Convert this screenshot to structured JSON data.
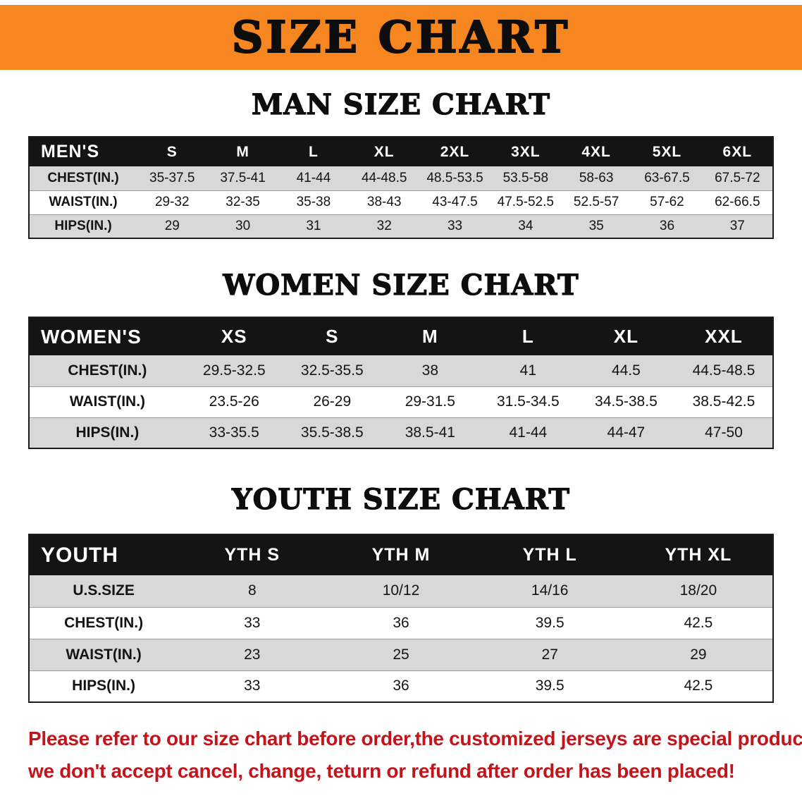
{
  "banner": {
    "title": "SIZE CHART",
    "bg_color": "#f6861f"
  },
  "colors": {
    "header_bg": "#141414",
    "shaded_row": "#d8d8d8",
    "disclaimer_text": "#c2151b"
  },
  "sections": [
    {
      "id": "men",
      "heading": "MAN SIZE CHART",
      "table": {
        "label": "MEN'S",
        "columns": [
          "S",
          "M",
          "L",
          "XL",
          "2XL",
          "3XL",
          "4XL",
          "5XL",
          "6XL"
        ],
        "rows": [
          {
            "label": "CHEST(IN.)",
            "values": [
              "35-37.5",
              "37.5-41",
              "41-44",
              "44-48.5",
              "48.5-53.5",
              "53.5-58",
              "58-63",
              "63-67.5",
              "67.5-72"
            ]
          },
          {
            "label": "WAIST(IN.)",
            "values": [
              "29-32",
              "32-35",
              "35-38",
              "38-43",
              "43-47.5",
              "47.5-52.5",
              "52.5-57",
              "57-62",
              "62-66.5"
            ]
          },
          {
            "label": "HIPS(IN.)",
            "values": [
              "29",
              "30",
              "31",
              "32",
              "33",
              "34",
              "35",
              "36",
              "37"
            ]
          }
        ]
      }
    },
    {
      "id": "women",
      "heading": "WOMEN SIZE CHART",
      "table": {
        "label": "WOMEN'S",
        "columns": [
          "XS",
          "S",
          "M",
          "L",
          "XL",
          "XXL"
        ],
        "rows": [
          {
            "label": "CHEST(IN.)",
            "values": [
              "29.5-32.5",
              "32.5-35.5",
              "38",
              "41",
              "44.5",
              "44.5-48.5"
            ]
          },
          {
            "label": "WAIST(IN.)",
            "values": [
              "23.5-26",
              "26-29",
              "29-31.5",
              "31.5-34.5",
              "34.5-38.5",
              "38.5-42.5"
            ]
          },
          {
            "label": "HIPS(IN.)",
            "values": [
              "33-35.5",
              "35.5-38.5",
              "38.5-41",
              "41-44",
              "44-47",
              "47-50"
            ]
          }
        ]
      }
    },
    {
      "id": "youth",
      "heading": "YOUTH SIZE CHART",
      "table": {
        "label": "YOUTH",
        "columns": [
          "YTH S",
          "YTH M",
          "YTH L",
          "YTH XL"
        ],
        "rows": [
          {
            "label": "U.S.SIZE",
            "values": [
              "8",
              "10/12",
              "14/16",
              "18/20"
            ]
          },
          {
            "label": "CHEST(IN.)",
            "values": [
              "33",
              "36",
              "39.5",
              "42.5"
            ]
          },
          {
            "label": "WAIST(IN.)",
            "values": [
              "23",
              "25",
              "27",
              "29"
            ]
          },
          {
            "label": "HIPS(IN.)",
            "values": [
              "33",
              "36",
              "39.5",
              "42.5"
            ]
          }
        ]
      }
    }
  ],
  "disclaimer": {
    "lines": [
      "Please refer to our size chart before order,the customized jerseys are special products,",
      "we don't accept cancel, change, teturn or refund after order has been placed!"
    ]
  }
}
